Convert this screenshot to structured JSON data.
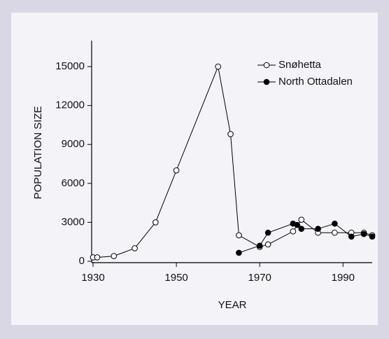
{
  "chart_data": {
    "type": "line",
    "xlabel": "YEAR",
    "ylabel": "POPULATION  SIZE",
    "xlim": [
      1930,
      1997
    ],
    "ylim": [
      0,
      17000
    ],
    "xticks": [
      1930,
      1950,
      1970,
      1990
    ],
    "yticks": [
      0,
      3000,
      6000,
      9000,
      12000,
      15000
    ],
    "legend": "upper right",
    "series": [
      {
        "name": "Snøhetta",
        "color": "#000000",
        "marker": "open",
        "x": [
          1930,
          1931,
          1935,
          1940,
          1945,
          1950,
          1960,
          1963,
          1965,
          1970,
          1972,
          1978,
          1980,
          1984,
          1988,
          1992,
          1995,
          1997
        ],
        "values": [
          300,
          300,
          400,
          1000,
          3000,
          7000,
          15000,
          9800,
          2000,
          1100,
          1300,
          2300,
          3200,
          2200,
          2200,
          2200,
          2200,
          2000
        ]
      },
      {
        "name": "North Ottadalen",
        "color": "#000000",
        "marker": "filled",
        "x": [
          1965,
          1970,
          1972,
          1978,
          1979,
          1980,
          1984,
          1988,
          1992,
          1995,
          1997
        ],
        "values": [
          650,
          1200,
          2200,
          2900,
          2800,
          2500,
          2500,
          2900,
          1900,
          2100,
          1900
        ]
      }
    ]
  }
}
